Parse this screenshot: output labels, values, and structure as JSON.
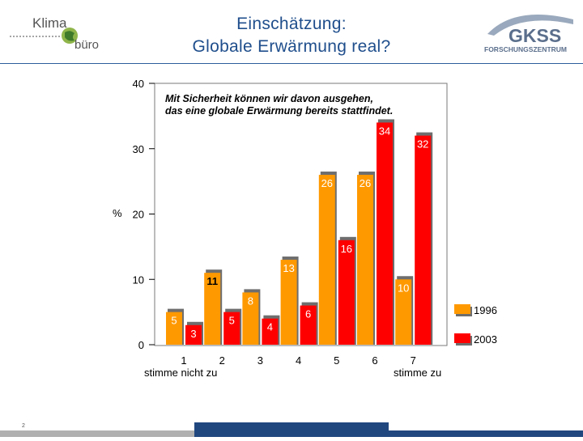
{
  "header": {
    "title_line1": "Einschätzung:",
    "title_line2": "Globale Erwärmung real?"
  },
  "logos": {
    "left": {
      "word1": "Klima",
      "word2": "büro",
      "icon": "globe-icon"
    },
    "right": {
      "word": "GKSS",
      "tagline": "FORSCHUNGSZENTRUM"
    }
  },
  "colors": {
    "title": "#1f4e8c",
    "series_1996": "#ff9900",
    "series_2003": "#ff0000",
    "shadow": "#6e6e6e",
    "footer_blue": "#21477f",
    "footer_gray": "#b0b0b0"
  },
  "footer": {
    "page_number": "2"
  },
  "chart_data": {
    "type": "bar",
    "annotation_line1": "Mit Sicherheit können wir davon ausgehen,",
    "annotation_line2": "das eine globale Erwärmung bereits stattfindet.",
    "ylabel": "%",
    "ylim": [
      0,
      40
    ],
    "yticks": [
      "0",
      "10",
      "20",
      "30",
      "40"
    ],
    "categories": [
      "1",
      "2",
      "3",
      "4",
      "5",
      "6",
      "7"
    ],
    "x_end_labels": {
      "left": "stimme nicht zu",
      "right": "stimme zu"
    },
    "legend_position": "right",
    "series": [
      {
        "name": "1996",
        "values": [
          5,
          11,
          8,
          13,
          26,
          26,
          10
        ],
        "color": "#ff9900"
      },
      {
        "name": "2003",
        "values": [
          3,
          5,
          4,
          6,
          16,
          34,
          32
        ],
        "color": "#ff0000"
      }
    ]
  }
}
